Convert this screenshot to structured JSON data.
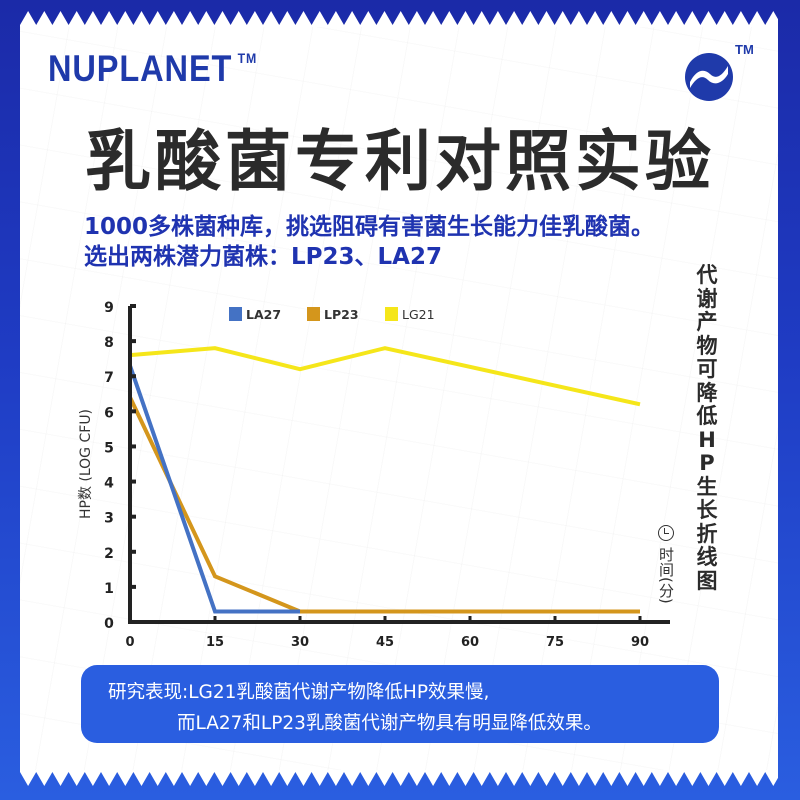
{
  "brand": {
    "name": "NUPLANET",
    "tm": "TM",
    "logo_tm": "TM",
    "logo_icon": "wave-circle-logo"
  },
  "title": "乳酸菌专利对照实验",
  "subtitle": {
    "line1": "1000多株菌种库，挑选阻碍有害菌生长能力佳乳酸菌。",
    "line2": "选出两株潜力菌株：LP23、LA27"
  },
  "side_title": "代谢产物可降低HP生长折线图",
  "x_unit": "时间(分)",
  "summary": {
    "line1": "研究表现:LG21乳酸菌代谢产物降低HP效果慢,",
    "line2": "而LA27和LP23乳酸菌代谢产物具有明显降低效果。"
  },
  "colors": {
    "brand_blue": "#1f3aaa",
    "la27": "#4472c4",
    "lp23": "#d4961c",
    "lg21": "#f5e61a",
    "summary_bg": "#2a5ee0"
  },
  "chart_data": {
    "type": "line",
    "title": "代谢产物可降低HP生长折线图",
    "xlabel": "时间(分)",
    "ylabel": "HP数 (LOG CFU)",
    "x": [
      0,
      15,
      30,
      45,
      60,
      75,
      90
    ],
    "x_ticks": [
      "0",
      "15",
      "30",
      "45",
      "60",
      "75",
      "90"
    ],
    "y_ticks": [
      "0",
      "1",
      "2",
      "3",
      "4",
      "5",
      "6",
      "7",
      "8",
      "9"
    ],
    "xlim": [
      0,
      90
    ],
    "ylim": [
      0,
      9
    ],
    "legend_position": "top",
    "grid": false,
    "series": [
      {
        "name": "LA27",
        "color": "#4472c4",
        "x": [
          0,
          15,
          30,
          45,
          60,
          75,
          90
        ],
        "values": [
          7.3,
          0.3,
          0.3,
          0.3,
          0.3,
          0.3,
          0.3
        ]
      },
      {
        "name": "LP23",
        "color": "#d4961c",
        "x": [
          0,
          15,
          30,
          45,
          60,
          75,
          90
        ],
        "values": [
          6.4,
          1.3,
          0.3,
          0.3,
          0.3,
          0.3,
          0.3
        ]
      },
      {
        "name": "LG21",
        "color": "#f5e61a",
        "x": [
          0,
          15,
          30,
          45,
          90
        ],
        "values": [
          7.6,
          7.8,
          7.2,
          7.8,
          6.2
        ]
      }
    ]
  }
}
